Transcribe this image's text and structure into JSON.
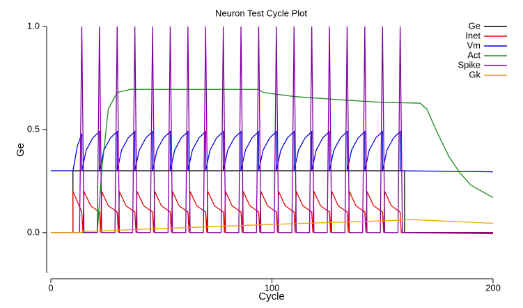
{
  "chart_data": {
    "type": "line",
    "title": "Neuron Test Cycle Plot",
    "x_label": "Cycle",
    "y_label": "Ge",
    "xlim": [
      0,
      200
    ],
    "xticks": [
      0,
      100,
      200
    ],
    "ylim": [
      -0.2,
      1.0
    ],
    "yticks": [
      {
        "value": 0,
        "label": "0.0"
      },
      {
        "value": 0.5,
        "label": "0.5"
      },
      {
        "value": 1,
        "label": "1.0"
      }
    ],
    "legend": "top-right",
    "series": [
      {
        "name": "Ge",
        "color": "#000000",
        "x": [
          0,
          10,
          10,
          160,
          160,
          200
        ],
        "values": [
          0,
          0,
          0.3,
          0.3,
          0,
          0
        ]
      },
      {
        "name": "Inet",
        "color": "#e00000",
        "x": [
          0,
          10,
          10,
          14,
          14.5,
          15,
          18,
          22,
          22.5,
          23,
          26,
          30,
          30.5,
          31,
          34,
          38,
          38.5,
          39,
          42,
          46,
          46.5,
          47,
          50,
          54,
          54.5,
          55,
          58,
          62,
          62.5,
          63,
          66,
          70,
          70.5,
          71,
          74,
          78,
          78.5,
          79,
          82,
          86,
          86.5,
          87,
          90,
          94,
          94.5,
          95,
          98,
          102,
          102.5,
          103,
          106,
          110,
          110.5,
          111,
          114,
          118,
          118.5,
          119,
          122,
          126,
          126.5,
          127,
          130,
          134,
          134.5,
          135,
          138,
          142,
          142.5,
          143,
          146,
          150,
          150.5,
          151,
          154,
          158,
          158.5,
          200
        ],
        "values": [
          0,
          0,
          0.2,
          0.1,
          0,
          0.2,
          0.13,
          0.1,
          0,
          0.2,
          0.13,
          0.1,
          0,
          0.2,
          0.13,
          0.1,
          0,
          0.2,
          0.13,
          0.1,
          0,
          0.2,
          0.13,
          0.1,
          0,
          0.2,
          0.13,
          0.1,
          0,
          0.2,
          0.13,
          0.1,
          0,
          0.2,
          0.13,
          0.1,
          0,
          0.2,
          0.13,
          0.1,
          0,
          0.2,
          0.13,
          0.1,
          0,
          0.2,
          0.13,
          0.1,
          0,
          0.2,
          0.13,
          0.1,
          0,
          0.2,
          0.13,
          0.1,
          0,
          0.2,
          0.13,
          0.1,
          0,
          0.2,
          0.13,
          0.1,
          0,
          0.2,
          0.13,
          0.1,
          0,
          0.2,
          0.13,
          0.1,
          0,
          0.2,
          0.13,
          0.1,
          0,
          -0.005
        ]
      },
      {
        "name": "Vm",
        "color": "#0000e0",
        "x": [
          0,
          10,
          12,
          14,
          14,
          16,
          19,
          22,
          22,
          24,
          27,
          30,
          30,
          32,
          35,
          38,
          38,
          40,
          43,
          46,
          46,
          48,
          51,
          54,
          54,
          56,
          59,
          62,
          62,
          64,
          67,
          70,
          70,
          72,
          75,
          78,
          78,
          80,
          83,
          86,
          86,
          88,
          91,
          94,
          94,
          96,
          99,
          102,
          102,
          104,
          107,
          110,
          110,
          112,
          115,
          118,
          118,
          120,
          123,
          126,
          126,
          128,
          131,
          134,
          134,
          136,
          139,
          142,
          142,
          144,
          147,
          150,
          150,
          152,
          155,
          158,
          158,
          200
        ],
        "values": [
          0.3,
          0.3,
          0.42,
          0.48,
          0.3,
          0.4,
          0.46,
          0.49,
          0.3,
          0.4,
          0.46,
          0.49,
          0.3,
          0.4,
          0.46,
          0.49,
          0.3,
          0.4,
          0.46,
          0.49,
          0.3,
          0.4,
          0.46,
          0.49,
          0.3,
          0.4,
          0.46,
          0.49,
          0.3,
          0.4,
          0.46,
          0.49,
          0.3,
          0.4,
          0.46,
          0.49,
          0.3,
          0.4,
          0.46,
          0.49,
          0.3,
          0.4,
          0.46,
          0.49,
          0.3,
          0.4,
          0.46,
          0.49,
          0.3,
          0.4,
          0.46,
          0.49,
          0.3,
          0.4,
          0.46,
          0.49,
          0.3,
          0.4,
          0.46,
          0.49,
          0.3,
          0.4,
          0.46,
          0.49,
          0.3,
          0.4,
          0.46,
          0.49,
          0.3,
          0.4,
          0.46,
          0.49,
          0.3,
          0.4,
          0.46,
          0.49,
          0.3,
          0.295
        ]
      },
      {
        "name": "Act",
        "color": "#1a8a1a",
        "x": [
          0,
          21,
          23,
          26,
          30,
          36,
          94,
          96,
          110,
          130,
          150,
          167,
          170,
          175,
          180,
          185,
          190,
          200
        ],
        "values": [
          0,
          0,
          0.3,
          0.6,
          0.68,
          0.695,
          0.695,
          0.68,
          0.66,
          0.645,
          0.632,
          0.628,
          0.6,
          0.48,
          0.37,
          0.29,
          0.23,
          0.17
        ]
      },
      {
        "name": "Spike",
        "color": "#8000a0",
        "x": [
          0,
          13,
          14,
          15,
          21,
          22,
          23,
          29,
          30,
          31,
          37,
          38,
          39,
          45,
          46,
          47,
          53,
          54,
          55,
          61,
          62,
          63,
          69,
          70,
          71,
          77,
          78,
          79,
          85,
          86,
          87,
          93,
          94,
          95,
          101,
          102,
          103,
          109,
          110,
          111,
          117,
          118,
          119,
          125,
          126,
          127,
          133,
          134,
          135,
          141,
          142,
          143,
          149,
          150,
          151,
          157,
          158,
          159,
          200
        ],
        "values": [
          0,
          0,
          1,
          0,
          0,
          1,
          0,
          0,
          1,
          0,
          0,
          1,
          0,
          0,
          1,
          0,
          0,
          1,
          0,
          0,
          1,
          0,
          0,
          1,
          0,
          0,
          1,
          0,
          0,
          1,
          0,
          0,
          1,
          0,
          0,
          1,
          0,
          0,
          1,
          0,
          0,
          1,
          0,
          0,
          1,
          0,
          0,
          1,
          0,
          0,
          1,
          0,
          0,
          1,
          0,
          0,
          1,
          0,
          0
        ]
      },
      {
        "name": "Gk",
        "color": "#f0a000",
        "x": [
          0,
          14,
          14,
          50,
          100,
          158,
          160,
          200
        ],
        "values": [
          0,
          0,
          0.005,
          0.02,
          0.04,
          0.06,
          0.065,
          0.045
        ]
      }
    ]
  }
}
